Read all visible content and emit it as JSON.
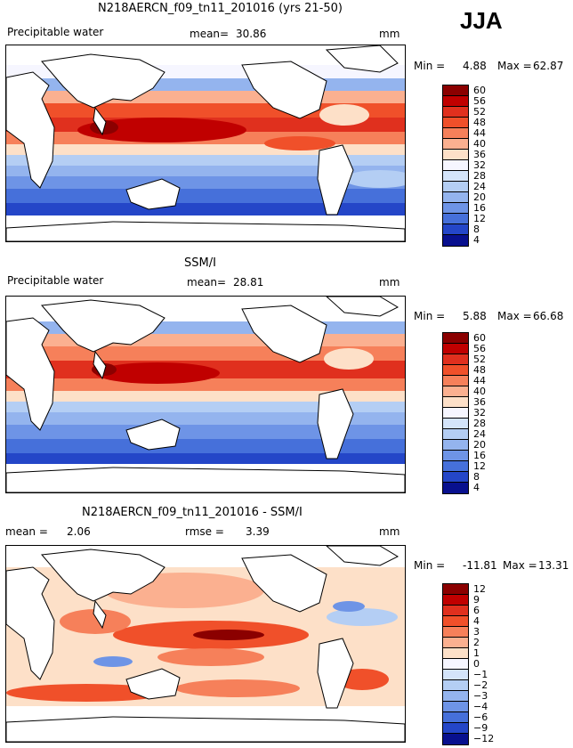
{
  "season": "JJA",
  "panels": [
    {
      "id": "model",
      "title": "N218AERCN_f09_tn11_201016 (yrs 21-50)",
      "variable": "Precipitable water",
      "mean_label": "mean=",
      "mean_value": "30.86",
      "units": "mm",
      "min_label": "Min =",
      "min_value": "4.88",
      "max_label": "Max =",
      "max_value": "62.87",
      "colorbar_levels": [
        "60",
        "56",
        "52",
        "48",
        "44",
        "40",
        "36",
        "32",
        "28",
        "24",
        "20",
        "16",
        "12",
        "8",
        "4"
      ],
      "colorbar_colors": [
        "#8b0000",
        "#c00000",
        "#e0301e",
        "#f0502a",
        "#f6805a",
        "#fbb090",
        "#fde0c8",
        "#f6f6ff",
        "#d4e4fa",
        "#b4cef4",
        "#94b4ee",
        "#6e94e6",
        "#4670da",
        "#2446c8",
        "#08108e"
      ]
    },
    {
      "id": "obs",
      "title": "SSM/I",
      "variable": "Precipitable water",
      "mean_label": "mean=",
      "mean_value": "28.81",
      "units": "mm",
      "min_label": "Min =",
      "min_value": "5.88",
      "max_label": "Max =",
      "max_value": "66.68",
      "colorbar_levels": [
        "60",
        "56",
        "52",
        "48",
        "44",
        "40",
        "36",
        "32",
        "28",
        "24",
        "20",
        "16",
        "12",
        "8",
        "4"
      ],
      "colorbar_colors": [
        "#8b0000",
        "#c00000",
        "#e0301e",
        "#f0502a",
        "#f6805a",
        "#fbb090",
        "#fde0c8",
        "#f6f6ff",
        "#d4e4fa",
        "#b4cef4",
        "#94b4ee",
        "#6e94e6",
        "#4670da",
        "#2446c8",
        "#08108e"
      ]
    },
    {
      "id": "diff",
      "title": "N218AERCN_f09_tn11_201016 - SSM/I",
      "mean_label": "mean =",
      "mean_value": "2.06",
      "rmse_label": "rmse =",
      "rmse_value": "3.39",
      "units": "mm",
      "min_label": "Min =",
      "min_value": "-11.81",
      "max_label": "Max =",
      "max_value": "13.31",
      "colorbar_levels": [
        "12",
        "9",
        "6",
        "4",
        "3",
        "2",
        "1",
        "0",
        "−1",
        "−2",
        "−3",
        "−4",
        "−6",
        "−9",
        "−12"
      ],
      "colorbar_colors": [
        "#8b0000",
        "#c00000",
        "#e0301e",
        "#f0502a",
        "#f6805a",
        "#fbb090",
        "#fde0c8",
        "#f6f6ff",
        "#d4e4fa",
        "#b4cef4",
        "#94b4ee",
        "#6e94e6",
        "#4670da",
        "#2446c8",
        "#08108e"
      ]
    }
  ]
}
